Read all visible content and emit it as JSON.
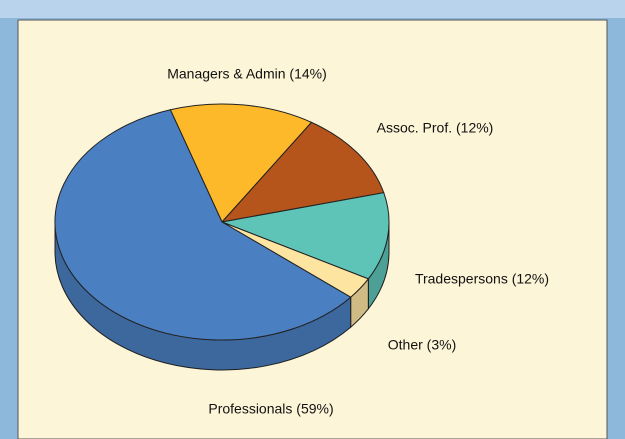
{
  "chart_data": {
    "type": "pie",
    "values": [
      14,
      12,
      12,
      3,
      59
    ],
    "value_labels": [
      "Managers & Admin (14%)",
      "Assoc. Prof. (12%)",
      "Tradespersons (12%)",
      "Other (3%)",
      "Professionals (59%)"
    ],
    "colors": [
      "#fdb929",
      "#b5541b",
      "#5fc4b8",
      "#fde4a0",
      "#4a7fc1"
    ]
  }
}
